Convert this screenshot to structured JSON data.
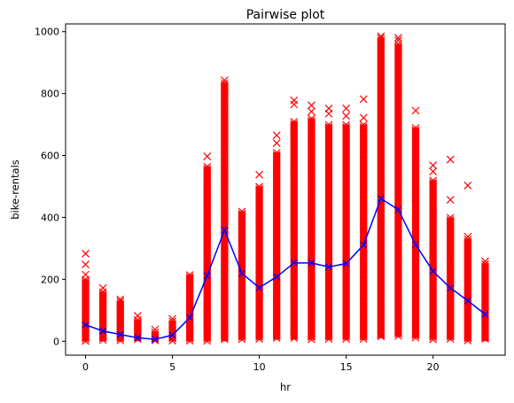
{
  "chart_data": {
    "type": "scatter",
    "title": "Pairwise plot",
    "xlabel": "hr",
    "ylabel": "bike-rentals",
    "xlim": [
      -1.15,
      24.15
    ],
    "ylim": [
      -45,
      1025
    ],
    "xticks": [
      0,
      5,
      10,
      15,
      20
    ],
    "yticks": [
      0,
      200,
      400,
      600,
      800,
      1000
    ],
    "grid": false,
    "legend": "none",
    "colors": {
      "scatter": "#ff0000",
      "mean_line": "#0000ff"
    },
    "scatter_range": {
      "hr": [
        0,
        1,
        2,
        3,
        4,
        5,
        6,
        7,
        8,
        9,
        10,
        11,
        12,
        13,
        14,
        15,
        16,
        17,
        18,
        19,
        20,
        21,
        22,
        23
      ],
      "min": [
        0,
        0,
        0,
        0,
        0,
        0,
        0,
        0,
        0,
        5,
        5,
        5,
        5,
        5,
        5,
        5,
        5,
        10,
        15,
        10,
        5,
        5,
        0,
        0
      ],
      "max": [
        200,
        160,
        130,
        70,
        30,
        65,
        215,
        565,
        835,
        420,
        500,
        610,
        710,
        720,
        700,
        700,
        700,
        980,
        960,
        690,
        520,
        400,
        330,
        250
      ]
    },
    "scatter_outliers": {
      "x": [
        0,
        0,
        0,
        1,
        2,
        3,
        4,
        5,
        7,
        8,
        10,
        11,
        11,
        12,
        12,
        13,
        13,
        14,
        14,
        15,
        15,
        16,
        16,
        17,
        17,
        18,
        18,
        19,
        20,
        20,
        21,
        21,
        22,
        22,
        23
      ],
      "y": [
        283,
        248,
        215,
        172,
        135,
        82,
        38,
        72,
        597,
        843,
        538,
        665,
        640,
        778,
        765,
        762,
        742,
        752,
        735,
        752,
        728,
        782,
        722,
        985,
        20,
        980,
        972,
        745,
        568,
        548,
        587,
        457,
        503,
        338,
        258
      ]
    },
    "series": [
      {
        "x": [
          0,
          1,
          2,
          3,
          4,
          5,
          6,
          7,
          8,
          9,
          10,
          11,
          12,
          13,
          14,
          15,
          16,
          17,
          18,
          19,
          20,
          21,
          22,
          23
        ],
        "values": [
          53,
          33,
          22,
          11,
          6,
          20,
          76,
          212,
          359,
          219,
          173,
          208,
          253,
          253,
          240,
          251,
          311,
          461,
          425,
          312,
          226,
          172,
          131,
          87
        ]
      }
    ]
  }
}
